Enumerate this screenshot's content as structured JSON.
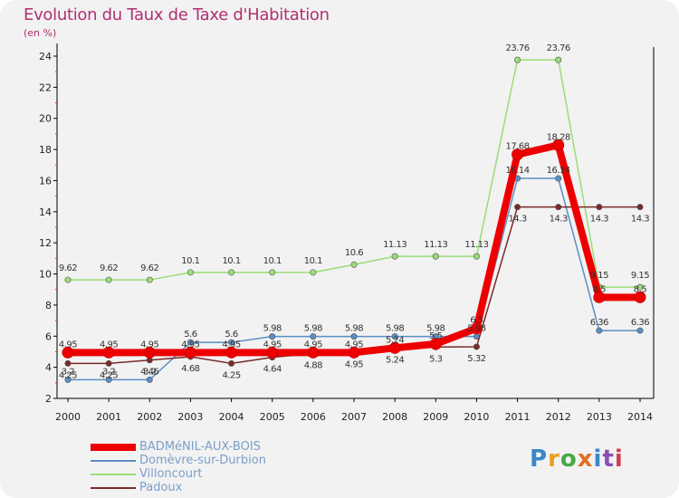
{
  "title": "Evolution du Taux de Taxe d'Habitation",
  "unit": "(en %)",
  "logo": {
    "text": "Proxiti",
    "colors": [
      "#3a86c8",
      "#e8a020",
      "#4aa844",
      "#e07020",
      "#3a86c8",
      "#8a50b0",
      "#d04050"
    ]
  },
  "chart_data": {
    "type": "line",
    "title": "Evolution du Taux de Taxe d'Habitation",
    "ylabel": "(en %)",
    "xlabel": "",
    "x": [
      "2000",
      "2001",
      "2002",
      "2003",
      "2004",
      "2005",
      "2006",
      "2007",
      "2008",
      "2009",
      "2010",
      "2011",
      "2012",
      "2013",
      "2014"
    ],
    "ylim": [
      2,
      24
    ],
    "yticks": [
      "2",
      "4",
      "6",
      "8",
      "10",
      "12",
      "14",
      "16",
      "18",
      "20",
      "22",
      "24"
    ],
    "grid": false,
    "legend_position": "bottom-left",
    "series": [
      {
        "name": "BADMéNIL-AUX-BOIS",
        "color": "#ee0000",
        "values": [
          4.95,
          4.95,
          4.95,
          4.95,
          4.95,
          4.95,
          4.95,
          4.95,
          5.24,
          5.5,
          6.5,
          17.68,
          18.28,
          8.5,
          8.5
        ],
        "labels": [
          "4.95",
          "4.95",
          "4.95",
          "4.95",
          "4.95",
          "4.95",
          "4.95",
          "4.95",
          "5.24",
          "5.5",
          "6.5",
          "17.68",
          "18.28",
          "8.5",
          "8.5"
        ]
      },
      {
        "name": "Domèvre-sur-Durbion",
        "color": "#5a8fc6",
        "values": [
          3.2,
          3.2,
          3.2,
          5.6,
          5.6,
          5.98,
          5.98,
          5.98,
          5.98,
          5.98,
          5.98,
          16.14,
          16.14,
          6.36,
          6.36
        ],
        "labels": [
          "3.2",
          "3.2",
          "3.2",
          "5.6",
          "5.6",
          "5.98",
          "5.98",
          "5.98",
          "5.98",
          "5.98",
          "5.98",
          "16.14",
          "16.14",
          "6.36",
          "6.36"
        ]
      },
      {
        "name": "Villoncourt",
        "color": "#99dd77",
        "values": [
          9.62,
          9.62,
          9.62,
          10.1,
          10.1,
          10.1,
          10.1,
          10.6,
          11.13,
          11.13,
          11.13,
          23.76,
          23.76,
          9.15,
          9.15
        ],
        "labels": [
          "9.62",
          "9.62",
          "9.62",
          "10.1",
          "10.1",
          "10.1",
          "10.1",
          "10.6",
          "11.13",
          "11.13",
          "11.13",
          "23.76",
          "23.76",
          "9.15",
          "9.15"
        ]
      },
      {
        "name": "Padoux",
        "color": "#7a2a2a",
        "values": [
          4.25,
          4.25,
          4.46,
          4.68,
          4.25,
          4.64,
          4.88,
          4.95,
          5.24,
          5.3,
          5.32,
          14.3,
          14.3,
          14.3,
          14.3
        ],
        "labels": [
          "4.25",
          "4.25",
          "4.46",
          "4.68",
          "4.25",
          "4.64",
          "4.88",
          "4.95",
          "5.24",
          "5.3",
          "5.32",
          "14.3",
          "14.3",
          "14.3",
          "14.3"
        ]
      }
    ]
  }
}
